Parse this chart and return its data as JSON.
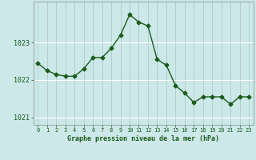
{
  "x": [
    0,
    1,
    2,
    3,
    4,
    5,
    6,
    7,
    8,
    9,
    10,
    11,
    12,
    13,
    14,
    15,
    16,
    17,
    18,
    19,
    20,
    21,
    22,
    23
  ],
  "y": [
    1022.45,
    1022.25,
    1022.15,
    1022.1,
    1022.1,
    1022.3,
    1022.6,
    1022.6,
    1022.85,
    1023.2,
    1023.75,
    1023.55,
    1023.45,
    1022.55,
    1022.4,
    1021.85,
    1021.65,
    1021.4,
    1021.55,
    1021.55,
    1021.55,
    1021.35,
    1021.55,
    1021.55
  ],
  "line_color": "#1a5c1a",
  "marker": "D",
  "marker_size": 2.5,
  "background_color": "#cce8e8",
  "grid_color_v": "#b0d0d0",
  "grid_color_h": "#ffffff",
  "xlabel": "Graphe pression niveau de la mer (hPa)",
  "xlabel_color": "#1a5c1a",
  "tick_color": "#1a5c1a",
  "ylim": [
    1020.8,
    1024.1
  ],
  "yticks": [
    1021,
    1022,
    1023
  ],
  "xticks": [
    0,
    1,
    2,
    3,
    4,
    5,
    6,
    7,
    8,
    9,
    10,
    11,
    12,
    13,
    14,
    15,
    16,
    17,
    18,
    19,
    20,
    21,
    22,
    23
  ]
}
